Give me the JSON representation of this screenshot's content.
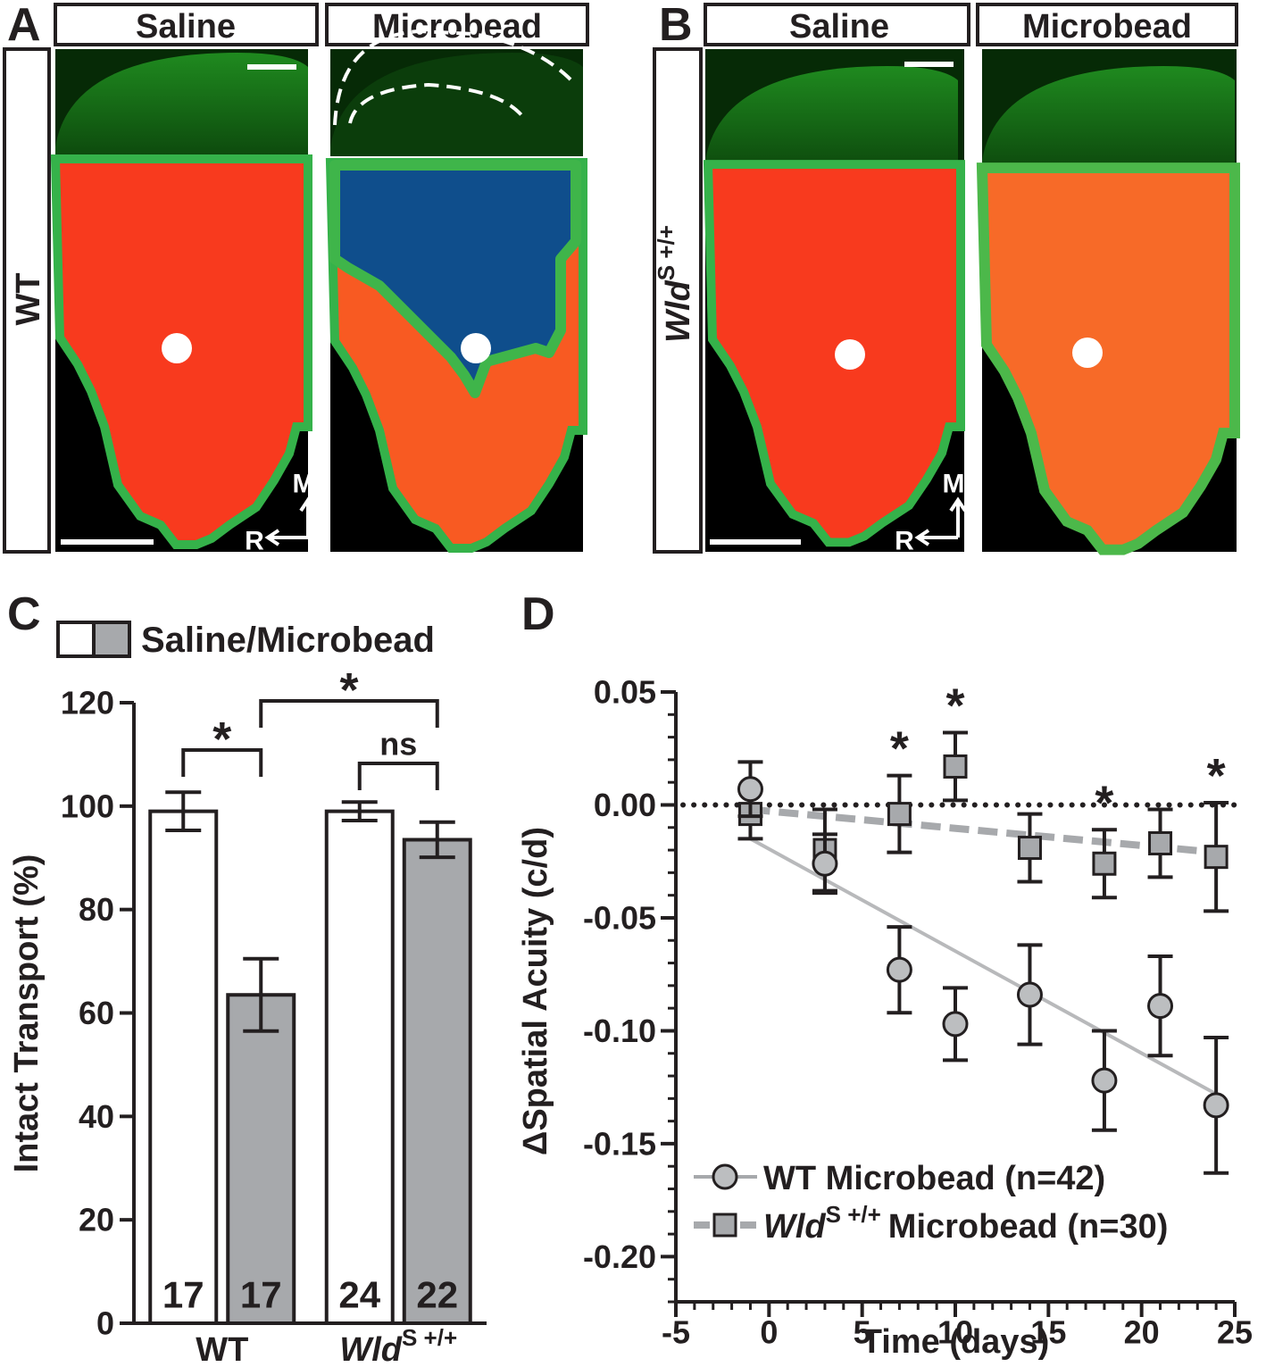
{
  "panels": [
    {
      "letter": "A",
      "row_label": "WT",
      "columns": [
        "Saline",
        "Microbead"
      ],
      "orientation": [
        "M",
        "R"
      ]
    },
    {
      "letter": "B",
      "row_label": "Wld",
      "row_label_sup": "S +/+",
      "columns": [
        "Saline",
        "Microbead"
      ],
      "orientation": [
        "M",
        "R"
      ]
    }
  ],
  "chart_data": [
    {
      "type": "bar",
      "letter": "C",
      "legend_label": "Saline/Microbead",
      "ylabel": "Intact Transport (%)",
      "categories": [
        "WT",
        "Wld"
      ],
      "category_sups": {
        "1": "S +/+"
      },
      "series": [
        {
          "color": "#ffffff",
          "values": [
            99,
            99
          ],
          "errors": [
            3.7,
            1.8
          ],
          "counts": [
            17,
            24
          ]
        },
        {
          "color": "#a7a9ac",
          "values": [
            63.5,
            93.5
          ],
          "errors": [
            7,
            3.4
          ],
          "counts": [
            17,
            22
          ]
        }
      ],
      "ylim": [
        0,
        120
      ],
      "yticks": [
        0,
        20,
        40,
        60,
        80,
        100,
        120
      ],
      "annotations": [
        {
          "text": "*"
        },
        {
          "text": "ns"
        },
        {
          "text": "*"
        }
      ]
    },
    {
      "type": "scatter",
      "letter": "D",
      "xlabel": "Time (days)",
      "ylabel": "ΔSpatial Acuity (c/d)",
      "x": [
        -1,
        3,
        7,
        10,
        14,
        18,
        21,
        24
      ],
      "series": [
        {
          "name": "WT Microbead (n=42)",
          "color": "#bcbec0",
          "marker": "circle",
          "line": "solid",
          "values": [
            0.007,
            -0.026,
            -0.073,
            -0.097,
            -0.084,
            -0.122,
            -0.089,
            -0.133
          ],
          "errors": [
            0.012,
            0.013,
            0.019,
            0.016,
            0.022,
            0.022,
            0.022,
            0.03
          ],
          "fit": [
            -0.015,
            -0.128
          ]
        },
        {
          "name": "Microbead (n=30)",
          "name_prefix": "Wld",
          "name_sup": "S +/+",
          "color": "#a7a9ac",
          "marker": "square",
          "line": "dashed",
          "values": [
            -0.004,
            -0.02,
            -0.004,
            0.017,
            -0.019,
            -0.026,
            -0.017,
            -0.023
          ],
          "errors": [
            0.011,
            0.018,
            0.017,
            0.015,
            0.015,
            0.015,
            0.015,
            0.024
          ],
          "fit": [
            -0.002,
            -0.021
          ]
        }
      ],
      "fit_x": [
        -1,
        24
      ],
      "xlim": [
        -5,
        25
      ],
      "xticks": [
        -5,
        0,
        5,
        10,
        15,
        20,
        25
      ],
      "x_minor_step": 1,
      "ylim": [
        -0.22,
        0.05
      ],
      "yticks": [
        {
          "value": -0.2,
          "label": "-0.20"
        },
        -0.15,
        {
          "value": -0.1,
          "label": "-0.10"
        },
        -0.05,
        {
          "value": 0,
          "label": "0.00"
        },
        0.05
      ],
      "y_minor_step": 0.01,
      "reference_y": 0,
      "annotations": [
        {
          "text": "*",
          "x": 7
        },
        {
          "text": "*",
          "x": 10
        },
        {
          "text": "*",
          "x": 18
        },
        {
          "text": "*",
          "x": 24
        }
      ]
    }
  ]
}
